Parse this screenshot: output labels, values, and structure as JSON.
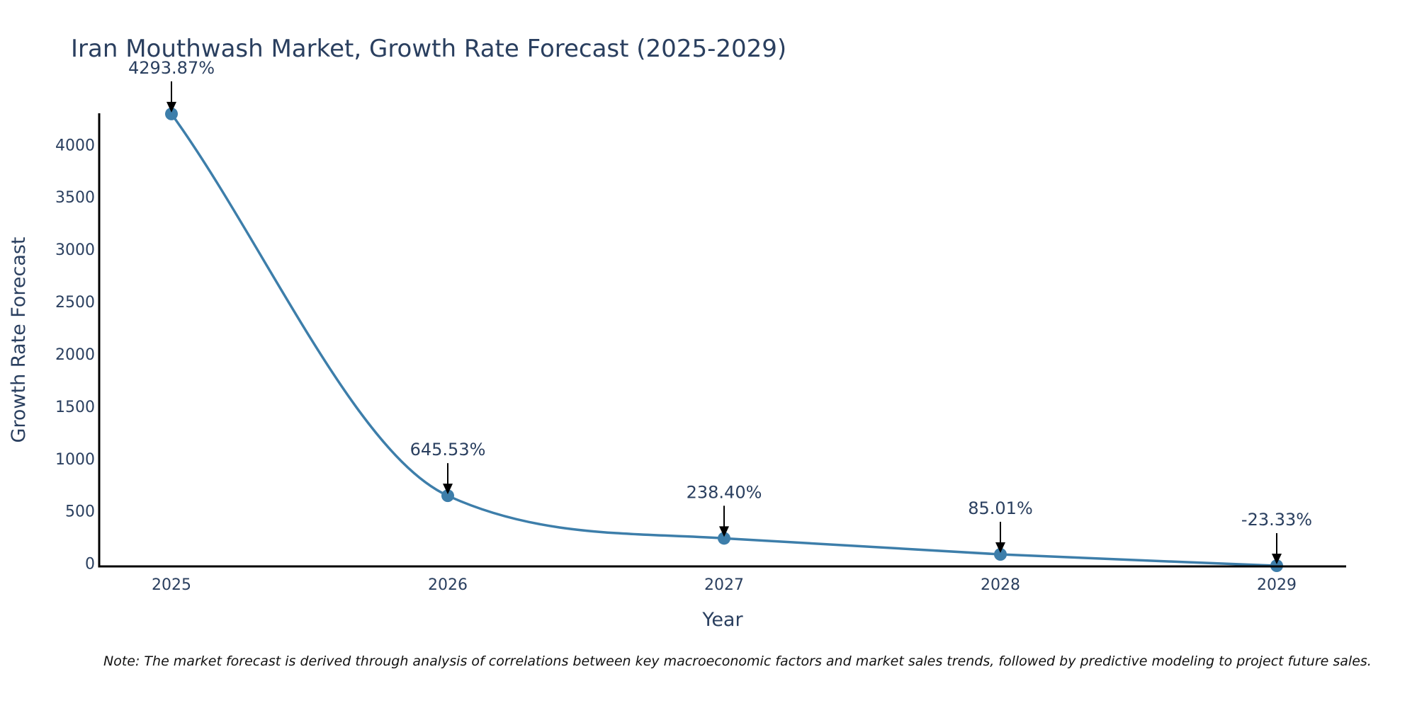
{
  "chart_data": {
    "type": "line",
    "title": "Iran Mouthwash Market, Growth Rate Forecast (2025-2029)",
    "xlabel": "Year",
    "ylabel": "Growth Rate Forecast",
    "categories": [
      "2025",
      "2026",
      "2027",
      "2028",
      "2029"
    ],
    "series": [
      {
        "name": "Growth Rate Forecast",
        "values": [
          4293.87,
          645.53,
          238.4,
          85.01,
          -23.33
        ],
        "labels": [
          "4293.87%",
          "645.53%",
          "238.40%",
          "85.01%",
          "-23.33%"
        ]
      }
    ],
    "ylim": [
      -30,
      4300
    ],
    "yticks": [
      0,
      500,
      1000,
      1500,
      2000,
      2500,
      3000,
      3500,
      4000
    ],
    "ytick_labels": [
      "0",
      "500",
      "1000",
      "1500",
      "2000",
      "2500",
      "3000",
      "3500",
      "4000"
    ],
    "line_color": "#3d7eaa",
    "grid": false,
    "note": "Note: The market forecast is derived through analysis of correlations between key macroeconomic factors and market sales trends, followed by predictive modeling to project future sales."
  }
}
